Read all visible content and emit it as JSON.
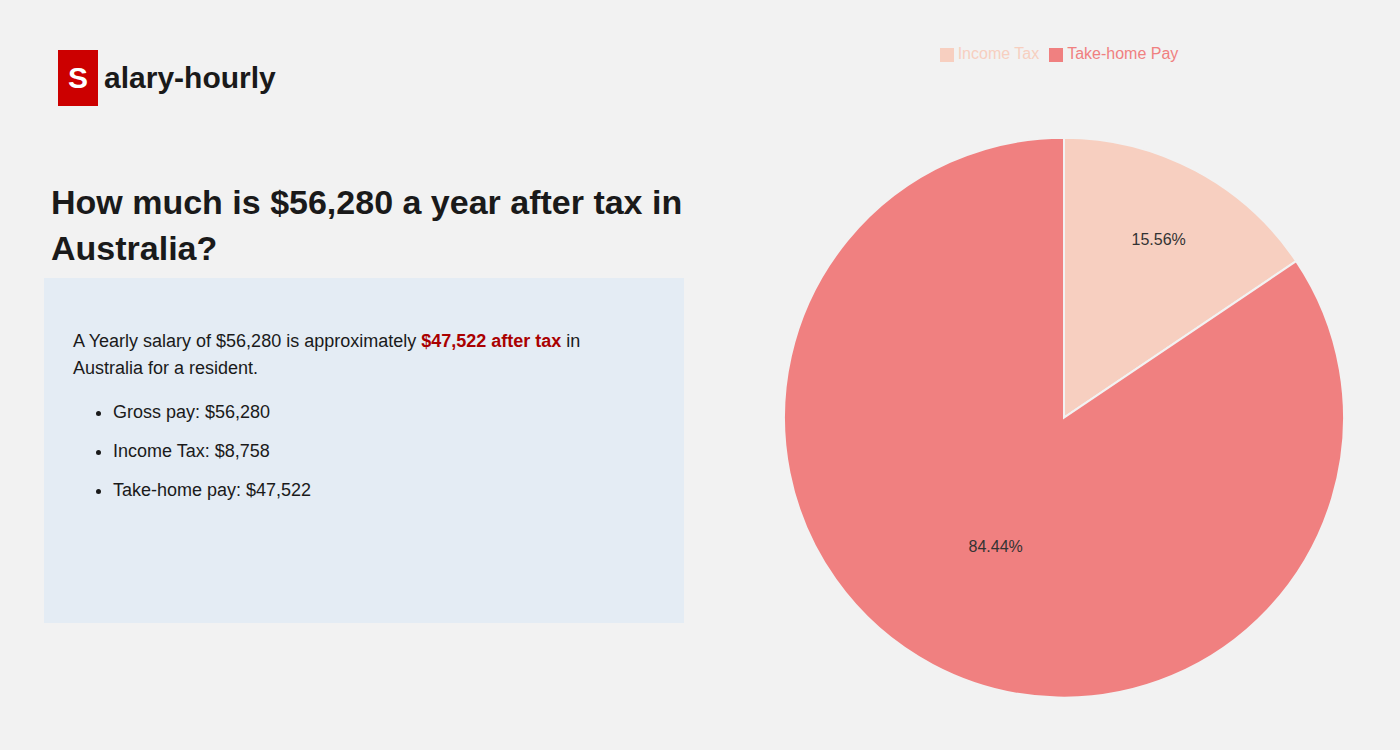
{
  "chart_data": {
    "type": "pie",
    "title": "How much is $56,280 a year after tax in\nAustralia?",
    "categories": [
      "Income Tax",
      "Take-home Pay"
    ],
    "values": [
      15.56,
      84.44
    ],
    "value_labels": [
      "15.56%",
      "84.44%"
    ],
    "colors": [
      "#f7cfc0",
      "#f08080"
    ],
    "data_labels": true,
    "legend": "top",
    "annotations": [
      "S",
      "alary-hourly",
      "A Yearly salary of $56,280 is approximately",
      "$47,522 after tax",
      "in",
      "Australia for a resident.",
      "Gross pay: $56,280",
      "Income Tax: $8,758",
      "Take-home pay: $47,522"
    ]
  }
}
